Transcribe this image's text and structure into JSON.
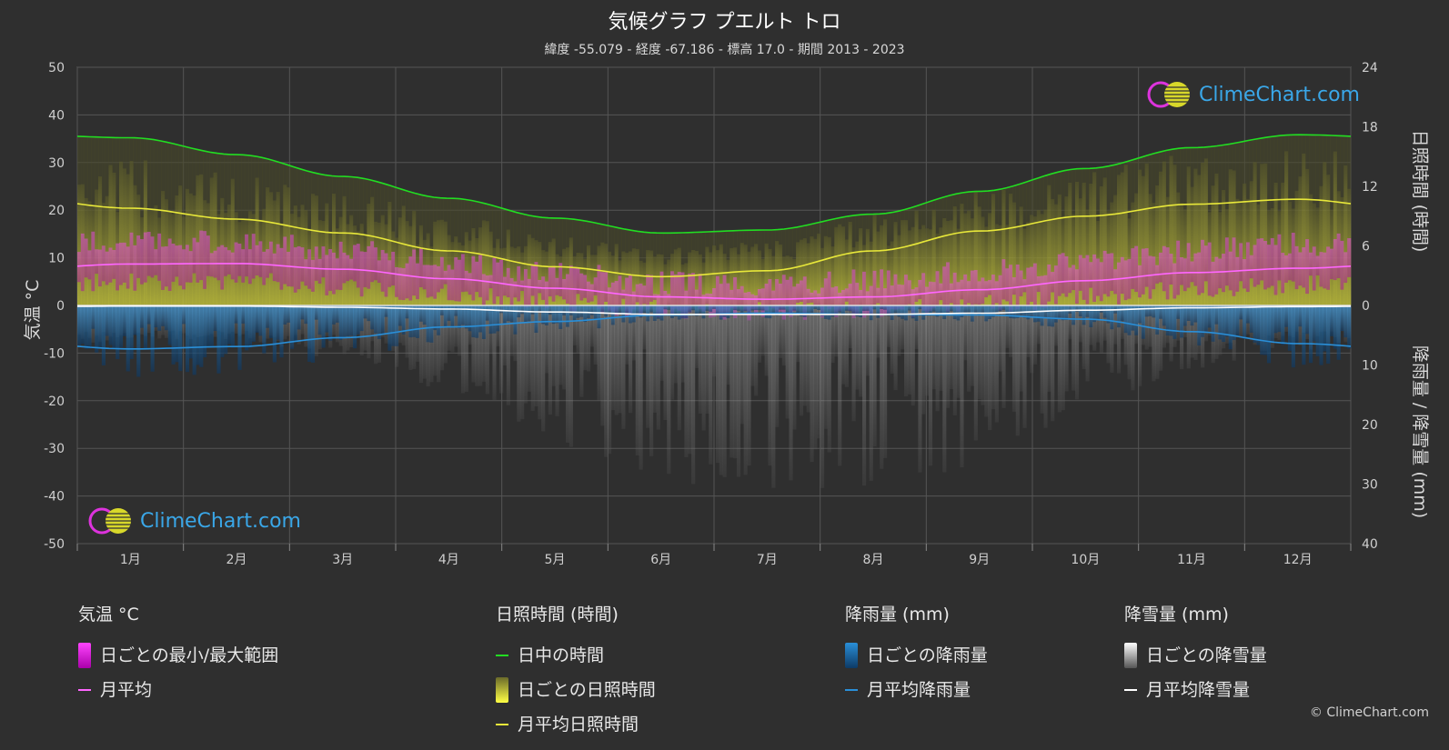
{
  "header": {
    "title": "気候グラフ プエルト トロ",
    "subtitle": "緯度 -55.079 - 経度 -67.186 - 標高 17.0 - 期間 2013 - 2023"
  },
  "axes": {
    "left_label": "気温 °C",
    "right_top_label": "日照時間 (時間)",
    "right_bottom_label": "降雨量 / 降雪量 (mm)"
  },
  "logo_text": "ClimeChart.com",
  "copyright": "© ClimeChart.com",
  "legend": {
    "temp": {
      "header": "気温 °C",
      "range": "日ごとの最小/最大範囲",
      "avg": "月平均"
    },
    "sun": {
      "header": "日照時間 (時間)",
      "daylight": "日中の時間",
      "daily": "日ごとの日照時間",
      "avg": "月平均日照時間"
    },
    "rain": {
      "header": "降雨量 (mm)",
      "daily": "日ごとの降雨量",
      "avg": "月平均降雨量"
    },
    "snow": {
      "header": "降雪量 (mm)",
      "daily": "日ごとの降雪量",
      "avg": "月平均降雪量"
    }
  },
  "colors": {
    "background": "#2f2f2f",
    "daylight": "#22dd22",
    "sunshine": "#e8e83a",
    "temp_avg": "#ff66ff",
    "temp_range": "#dd22dd",
    "rain": "#2a8fd8",
    "snow": "#ffffff"
  },
  "chart_data": {
    "type": "line",
    "months": [
      "1月",
      "2月",
      "3月",
      "4月",
      "5月",
      "6月",
      "7月",
      "8月",
      "9月",
      "10月",
      "11月",
      "12月"
    ],
    "left_axis": {
      "label": "気温 °C",
      "ticks": [
        50,
        40,
        30,
        20,
        10,
        0,
        -10,
        -20,
        -30,
        -40,
        -50
      ],
      "range": [
        -50,
        50
      ]
    },
    "right_axis_sun": {
      "label": "日照時間 (時間)",
      "ticks": [
        24,
        18,
        12,
        6,
        0
      ],
      "range": [
        0,
        24
      ]
    },
    "right_axis_precip": {
      "label": "降雨量 / 降雪量 (mm)",
      "ticks": [
        0,
        10,
        20,
        30,
        40
      ],
      "range": [
        0,
        40
      ]
    },
    "series": [
      {
        "name": "日中の時間",
        "axis": "sun",
        "values": [
          16.9,
          15.2,
          13.0,
          10.8,
          8.8,
          7.3,
          7.6,
          9.2,
          11.5,
          13.8,
          15.9,
          17.2
        ]
      },
      {
        "name": "月平均日照時間",
        "axis": "sun",
        "values": [
          9.8,
          8.7,
          7.3,
          5.5,
          3.9,
          2.9,
          3.5,
          5.5,
          7.5,
          9.0,
          10.2,
          10.7
        ]
      },
      {
        "name": "月平均",
        "axis": "temp",
        "values": [
          8.7,
          8.8,
          7.6,
          5.6,
          3.6,
          1.8,
          1.3,
          1.8,
          3.3,
          5.2,
          6.9,
          7.8
        ]
      },
      {
        "name": "月平均降雨量",
        "axis": "precip",
        "values": [
          7.3,
          6.9,
          5.4,
          3.6,
          2.7,
          1.6,
          1.3,
          1.5,
          1.6,
          2.3,
          4.4,
          6.4
        ]
      },
      {
        "name": "月平均降雪量",
        "axis": "precip",
        "values": [
          0.1,
          0.1,
          0.3,
          0.6,
          1.1,
          1.5,
          1.5,
          1.5,
          1.3,
          0.8,
          0.4,
          0.2
        ]
      }
    ],
    "temp_range_daily": {
      "min": [
        5.0,
        5.2,
        4.0,
        2.5,
        0.8,
        -0.8,
        -1.2,
        -0.8,
        0.2,
        1.8,
        3.2,
        4.3
      ],
      "max": [
        13.5,
        13.2,
        11.8,
        9.2,
        6.8,
        4.8,
        4.5,
        5.2,
        7.0,
        9.2,
        11.5,
        12.8
      ]
    },
    "grid": true
  }
}
